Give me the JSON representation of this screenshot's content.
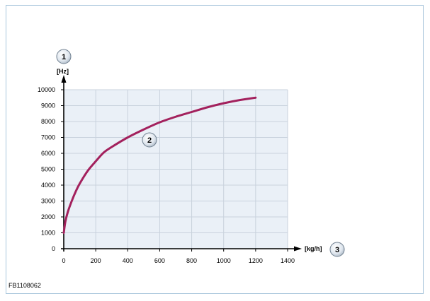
{
  "reference_code": "FB1108062",
  "chart_data": {
    "type": "line",
    "xlabel": "[kg/h]",
    "ylabel": "[Hz]",
    "xlim": [
      0,
      1400
    ],
    "ylim": [
      0,
      10000
    ],
    "x_ticks": [
      0,
      200,
      400,
      600,
      800,
      1000,
      1200,
      1400
    ],
    "y_ticks": [
      0,
      1000,
      2000,
      3000,
      4000,
      5000,
      6000,
      7000,
      8000,
      9000,
      10000
    ],
    "grid": true,
    "series": [
      {
        "color": "#a3215d",
        "x": [
          0,
          10,
          25,
          50,
          75,
          100,
          150,
          200,
          250,
          300,
          400,
          500,
          600,
          700,
          800,
          900,
          1000,
          1100,
          1200
        ],
        "y": [
          1000,
          1700,
          2300,
          3000,
          3600,
          4100,
          4900,
          5500,
          6050,
          6400,
          7000,
          7500,
          7950,
          8300,
          8600,
          8900,
          9150,
          9350,
          9500
        ]
      }
    ],
    "callouts": [
      {
        "label": "1",
        "target": "y-axis"
      },
      {
        "label": "2",
        "target": "curve"
      },
      {
        "label": "3",
        "target": "x-axis"
      }
    ]
  }
}
